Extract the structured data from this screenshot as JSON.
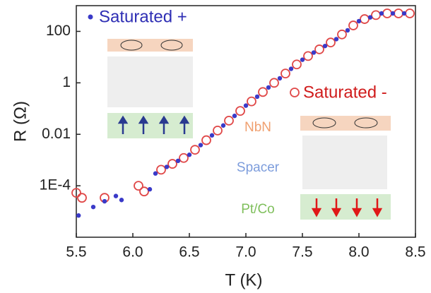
{
  "chart_data": {
    "type": "scatter",
    "x_label": "T (K)",
    "y_label": "R (Ω)",
    "y_log": true,
    "xlim": [
      5.5,
      8.5
    ],
    "xticks": [
      5.5,
      {
        "value": 6,
        "label": "6.0"
      },
      6.5,
      {
        "value": 7,
        "label": "7.0"
      },
      7.5,
      {
        "value": 8,
        "label": "8.0"
      },
      8.5
    ],
    "ylim": [
      1e-06,
      1000
    ],
    "yticks": [
      {
        "value": 0.0001,
        "label": "1E-4"
      },
      0.01,
      1,
      100
    ],
    "annotations": [
      "NbN",
      "Spacer",
      "Pt/Co"
    ],
    "series": [
      {
        "name": "Saturated +",
        "color": "#3a3ac8",
        "marker": "filled",
        "x": [
          5.52,
          5.65,
          5.75,
          5.85,
          5.9,
          6.15,
          6.2,
          6.3,
          6.4,
          6.5,
          6.6,
          6.7,
          6.8,
          6.9,
          7.0,
          7.1,
          7.2,
          7.3,
          7.4,
          7.5,
          7.6,
          7.7,
          7.8,
          7.9,
          8.0,
          8.1,
          8.2,
          8.3,
          8.4
        ],
        "values": [
          7e-06,
          1.5e-05,
          2.5e-05,
          4e-05,
          2.8e-05,
          7.3e-05,
          0.0003,
          0.00054,
          0.00093,
          0.0016,
          0.0038,
          0.0091,
          0.022,
          0.052,
          0.13,
          0.29,
          0.66,
          1.5,
          3.5,
          7.9,
          15,
          27,
          50,
          110,
          250,
          350,
          500,
          500,
          500
        ]
      },
      {
        "name": "Saturated -",
        "color": "#e04848",
        "marker": "open",
        "x": [
          5.5,
          5.55,
          5.75,
          6.05,
          6.1,
          6.25,
          6.35,
          6.45,
          6.55,
          6.65,
          6.75,
          6.85,
          6.95,
          7.05,
          7.15,
          7.25,
          7.35,
          7.45,
          7.55,
          7.65,
          7.75,
          7.85,
          7.95,
          8.05,
          8.15,
          8.25,
          8.35,
          8.45
        ],
        "values": [
          5.3e-05,
          3.4e-05,
          3.4e-05,
          0.0001,
          6e-05,
          0.00042,
          0.00071,
          0.0012,
          0.0025,
          0.0059,
          0.014,
          0.034,
          0.081,
          0.19,
          0.44,
          1,
          2.3,
          5.2,
          11,
          20,
          37,
          76,
          170,
          300,
          430,
          500,
          500,
          500
        ]
      }
    ]
  }
}
